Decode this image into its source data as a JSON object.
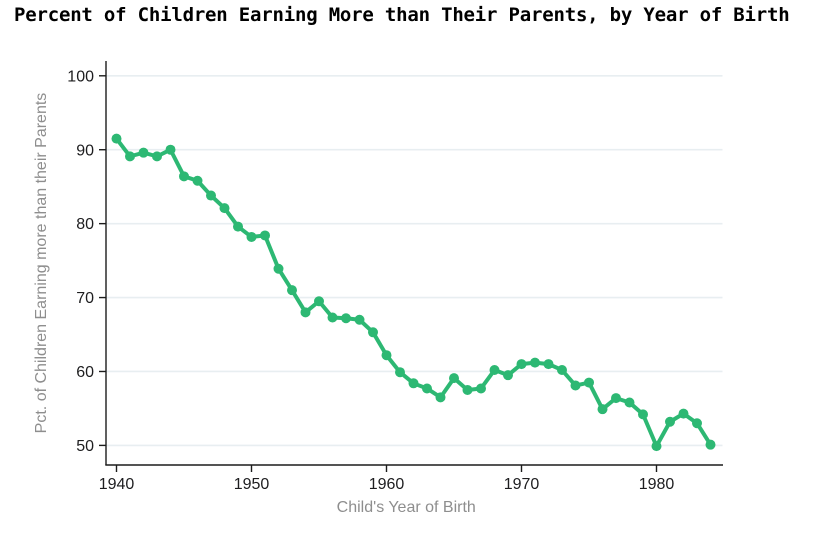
{
  "chart_data": {
    "type": "line",
    "title": "Percent of Children Earning More than Their Parents, by Year of Birth",
    "xlabel": "Child's Year of Birth",
    "ylabel": "Pct. of Children Earning more than their Parents",
    "x": [
      1940,
      1941,
      1942,
      1943,
      1944,
      1945,
      1946,
      1947,
      1948,
      1949,
      1950,
      1951,
      1952,
      1953,
      1954,
      1955,
      1956,
      1957,
      1958,
      1959,
      1960,
      1961,
      1962,
      1963,
      1964,
      1965,
      1966,
      1967,
      1968,
      1969,
      1970,
      1971,
      1972,
      1973,
      1974,
      1975,
      1976,
      1977,
      1978,
      1979,
      1980,
      1981,
      1982,
      1983,
      1984
    ],
    "values": [
      91.5,
      89.1,
      89.6,
      89.1,
      90.0,
      86.4,
      85.8,
      83.8,
      82.1,
      79.6,
      78.2,
      78.4,
      73.9,
      71.0,
      68.0,
      69.5,
      67.3,
      67.2,
      67.0,
      65.3,
      62.2,
      59.9,
      58.4,
      57.7,
      56.5,
      59.1,
      57.5,
      57.7,
      60.2,
      59.5,
      61.0,
      61.2,
      61.0,
      60.2,
      58.1,
      58.5,
      54.9,
      56.4,
      55.8,
      54.2,
      49.9,
      53.2,
      54.3,
      53.0,
      50.1
    ],
    "x_ticks": [
      1940,
      1950,
      1960,
      1970,
      1980
    ],
    "y_ticks": [
      50,
      60,
      70,
      80,
      90,
      100
    ],
    "xlim": [
      1939.2,
      1984.8
    ],
    "ylim": [
      47.2,
      102
    ],
    "grid": "horizontal",
    "legend": "none",
    "colors": {
      "line": "#2db873",
      "marker": "#2db873",
      "grid": "#e8eef1",
      "axis": "#1c1c1c",
      "tick_label": "#1d1d1f",
      "axis_label": "#8e8e8e",
      "title": "#000000"
    }
  }
}
